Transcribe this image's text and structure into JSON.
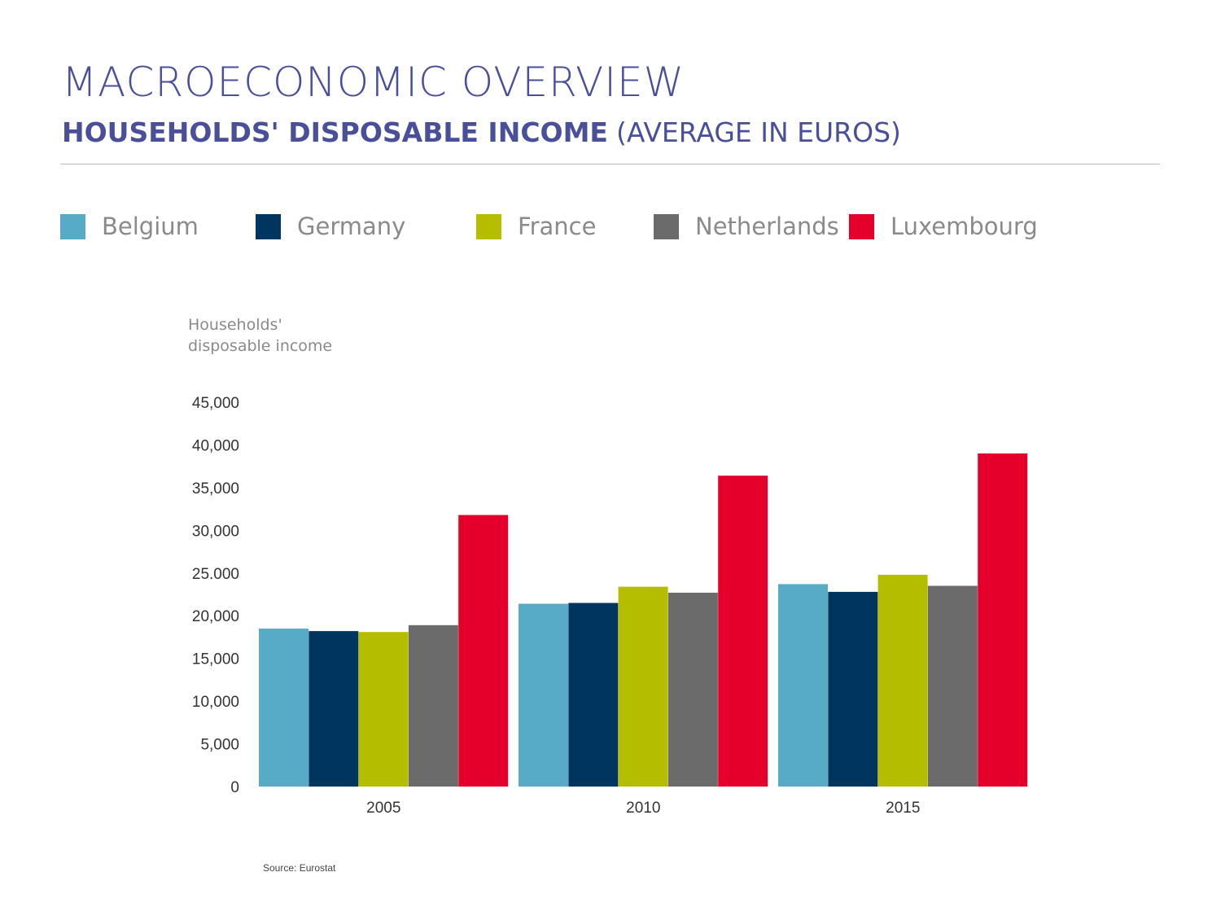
{
  "header": {
    "title": "MACROECONOMIC OVERVIEW",
    "subtitle_bold": "HOUSEHOLDS' DISPOSABLE INCOME",
    "subtitle_light": "(AVERAGE IN EUROS)"
  },
  "legend": [
    {
      "label": "Belgium",
      "color": "#57abc7"
    },
    {
      "label": "Germany",
      "color": "#003560"
    },
    {
      "label": "France",
      "color": "#b5bd00"
    },
    {
      "label": "Netherlands",
      "color": "#6a6b6a"
    },
    {
      "label": "Luxembourg",
      "color": "#e4002b"
    }
  ],
  "source": "Source: Eurostat",
  "chart_data": {
    "type": "bar",
    "title": "",
    "ylabel_lines": [
      "Households'",
      "disposable income"
    ],
    "xlabel": "",
    "categories": [
      "2005",
      "2010",
      "2015"
    ],
    "ylim": [
      0,
      45000
    ],
    "yticks": [
      0,
      5000,
      10000,
      15000,
      20000,
      25000,
      30000,
      35000,
      40000,
      45000
    ],
    "ytick_labels": [
      "0",
      "5,000",
      "10,000",
      "15,000",
      "20,000",
      "25.000",
      "30,000",
      "35,000",
      "40,000",
      "45,000"
    ],
    "grid": false,
    "legend_position": "top",
    "series": [
      {
        "name": "Belgium",
        "color": "#57abc7",
        "values": [
          18500,
          21400,
          23700
        ]
      },
      {
        "name": "Germany",
        "color": "#003560",
        "values": [
          18200,
          21500,
          22800
        ]
      },
      {
        "name": "France",
        "color": "#b5bd00",
        "values": [
          18100,
          23400,
          24800
        ]
      },
      {
        "name": "Netherlands",
        "color": "#6a6b6a",
        "values": [
          18900,
          22700,
          23500
        ]
      },
      {
        "name": "Luxembourg",
        "color": "#e4002b",
        "values": [
          31800,
          36400,
          39000
        ]
      }
    ]
  }
}
